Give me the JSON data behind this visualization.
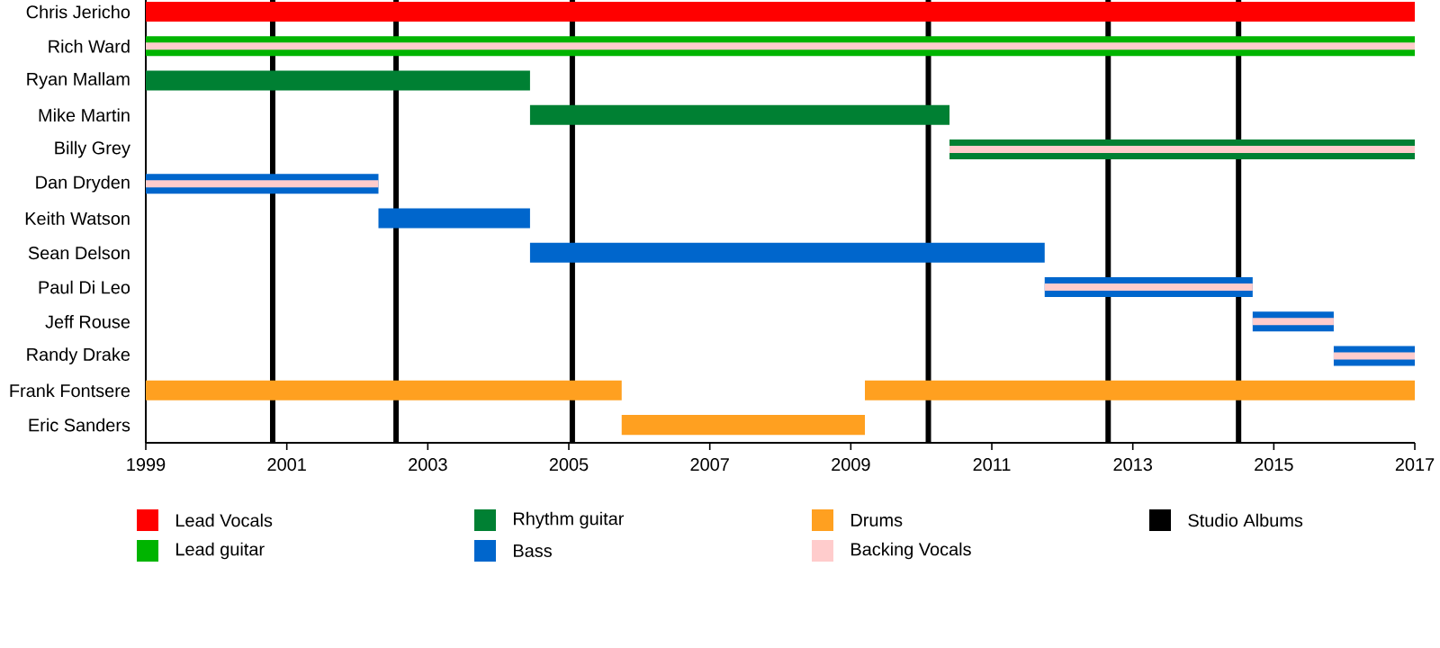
{
  "chart_data": {
    "type": "bar",
    "orientation": "horizontal",
    "categories": [
      "Chris Jericho",
      "Rich Ward",
      "Ryan Mallam",
      "Mike Martin",
      "Billy Grey",
      "Dan Dryden",
      "Keith Watson",
      "Sean Delson",
      "Paul Di Leo",
      "Jeff Rouse",
      "Randy Drake",
      "Frank Fontsere",
      "Eric Sanders"
    ],
    "series": [
      {
        "name": "Lead Vocals",
        "color": "#ff0000",
        "values": [
          18,
          null,
          null,
          null,
          null,
          null,
          null,
          null,
          null,
          null,
          null,
          null,
          null
        ],
        "base": [
          1999,
          null,
          null,
          null,
          null,
          null,
          null,
          null,
          null,
          null,
          null,
          null,
          null
        ]
      },
      {
        "name": "Lead guitar",
        "color": "#00b400",
        "values": [
          null,
          18,
          null,
          null,
          null,
          null,
          null,
          null,
          null,
          null,
          null,
          null,
          null
        ],
        "base": [
          null,
          1999,
          null,
          null,
          null,
          null,
          null,
          null,
          null,
          null,
          null,
          null,
          null
        ]
      },
      {
        "name": "Rhythm guitar",
        "color": "#008033",
        "values": [
          null,
          null,
          5.45,
          5.95,
          6.6,
          null,
          null,
          null,
          null,
          null,
          null,
          null,
          null
        ],
        "base": [
          null,
          null,
          1999,
          2004.45,
          2010.4,
          null,
          null,
          null,
          null,
          null,
          null,
          null,
          null
        ]
      },
      {
        "name": "Bass",
        "color": "#0066cc",
        "values": [
          null,
          null,
          null,
          null,
          null,
          3.3,
          2.15,
          7.3,
          2.95,
          1.15,
          1.15,
          null,
          null
        ],
        "base": [
          null,
          null,
          null,
          null,
          null,
          1999,
          2002.3,
          2004.45,
          2011.75,
          2014.7,
          2015.85,
          null,
          null
        ]
      },
      {
        "name": "Drums",
        "color": "#ffa020",
        "values": [
          null,
          null,
          null,
          null,
          null,
          null,
          null,
          null,
          null,
          null,
          null,
          6.75,
          3.45
        ],
        "base": [
          null,
          null,
          null,
          null,
          null,
          null,
          null,
          null,
          null,
          null,
          null,
          1999,
          2005.75
        ]
      },
      {
        "name": "Backing Vocals",
        "color": "#ffcccc",
        "values": [
          null,
          18,
          null,
          null,
          6.6,
          3.3,
          null,
          null,
          2.95,
          1.15,
          1.15,
          null,
          null
        ],
        "base": [
          null,
          1999,
          null,
          null,
          2010.4,
          1999,
          null,
          null,
          2011.75,
          2014.7,
          2015.85,
          null,
          null
        ]
      },
      {
        "color": "#ffa020",
        "values": [
          null,
          null,
          null,
          null,
          null,
          null,
          null,
          null,
          null,
          null,
          null,
          7.8,
          null
        ],
        "base": [
          null,
          null,
          null,
          null,
          null,
          null,
          null,
          null,
          null,
          null,
          null,
          2009.2,
          null
        ]
      }
    ],
    "xlim": [
      1999,
      2017
    ],
    "xticks": [
      1999,
      2001,
      2003,
      2005,
      2007,
      2009,
      2011,
      2013,
      2015,
      2017
    ],
    "ref_lines": [
      {
        "axis": "x",
        "value": 2000.8,
        "label": "Studio Albums",
        "color": "#000000"
      },
      {
        "axis": "x",
        "value": 2002.55,
        "color": "#000000"
      },
      {
        "axis": "x",
        "value": 2005.05,
        "color": "#000000"
      },
      {
        "axis": "x",
        "value": 2010.1,
        "color": "#000000"
      },
      {
        "axis": "x",
        "value": 2012.65,
        "color": "#000000"
      },
      {
        "axis": "x",
        "value": 2014.5,
        "color": "#000000"
      }
    ],
    "legend": "bottom",
    "grid": false
  }
}
